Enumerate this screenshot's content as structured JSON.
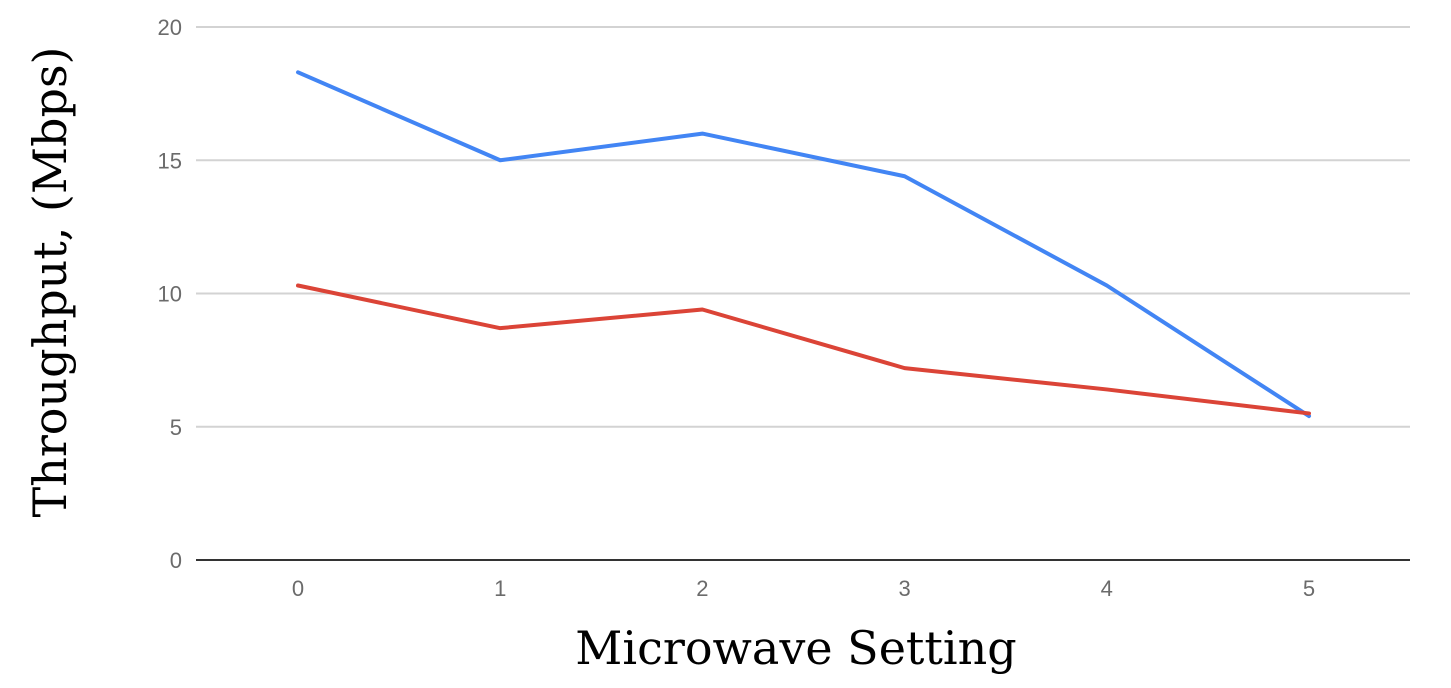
{
  "chart_data": {
    "type": "line",
    "title": "",
    "xlabel": "Microwave Setting",
    "ylabel": "Throughput, (Mbps)",
    "categories": [
      "0",
      "1",
      "2",
      "3",
      "4",
      "5"
    ],
    "x": [
      0,
      1,
      2,
      3,
      4,
      5
    ],
    "ylim": [
      0,
      20
    ],
    "yticks": [
      0,
      5,
      10,
      15,
      20
    ],
    "grid": true,
    "legend": "none",
    "series": [
      {
        "color": "#4285f4",
        "values": [
          18.3,
          15.0,
          16.0,
          14.4,
          10.3,
          5.4
        ]
      },
      {
        "color": "#db4437",
        "values": [
          10.3,
          8.7,
          9.4,
          7.2,
          6.4,
          5.5
        ]
      }
    ]
  }
}
